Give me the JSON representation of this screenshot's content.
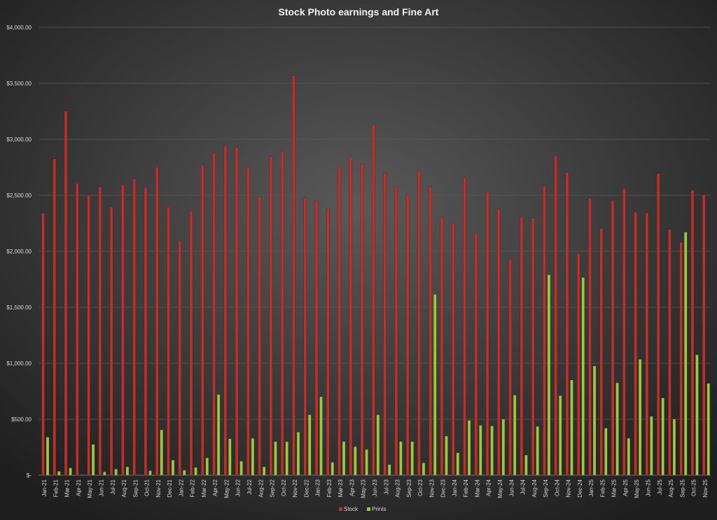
{
  "chart_data": {
    "type": "bar",
    "title": "Stock Photo earnings and Fine Art",
    "categories": [
      "Jan-21",
      "Feb-21",
      "Mar-21",
      "Apr-21",
      "May-21",
      "Jun-21",
      "Jul-21",
      "Aug-21",
      "Sep-21",
      "Oct-21",
      "Nov-21",
      "Dec-21",
      "Jan-22",
      "Feb-22",
      "Mar-22",
      "Apr-22",
      "May-22",
      "Jun-22",
      "Jul-22",
      "Aug-22",
      "Sep-22",
      "Oct-22",
      "Nov-22",
      "Dec-22",
      "Jan-23",
      "Feb-23",
      "Mar-23",
      "Apr-23",
      "May-23",
      "Jun-23",
      "Jul-23",
      "Aug-23",
      "Sep-23",
      "Oct-23",
      "Nov-23",
      "Dec-23",
      "Jan-24",
      "Feb-24",
      "Mar-24",
      "Apr-24",
      "May-24",
      "Jun-24",
      "Jul-24",
      "Aug-24",
      "Sep-24",
      "Oct-24",
      "Nov-24",
      "Dec-24",
      "Jan-25",
      "Feb-25",
      "Mar-25",
      "Apr-25",
      "May-25",
      "Jun-25",
      "Jul-25",
      "Aug-25",
      "Sep-25",
      "Oct-25",
      "Nov-25"
    ],
    "series": [
      {
        "name": "Stock",
        "color": "#c0302a",
        "values": [
          2340,
          2825,
          3250,
          2606,
          2500,
          2575,
          2394,
          2594,
          2644,
          2569,
          2750,
          2394,
          2090,
          2360,
          2770,
          2880,
          2940,
          2925,
          2750,
          2490,
          2845,
          2890,
          3570,
          2475,
          2450,
          2375,
          2755,
          2840,
          2780,
          3130,
          2695,
          2575,
          2505,
          2720,
          2580,
          2300,
          2250,
          2660,
          2160,
          2530,
          2375,
          1930,
          2305,
          2295,
          2580,
          2850,
          2705,
          1980,
          2470,
          2205,
          2455,
          2560,
          2350,
          2340,
          2695,
          2195,
          2080,
          2545,
          2505
        ]
      },
      {
        "name": "Prints",
        "color": "#9bcb3c",
        "values": [
          340,
          35,
          65,
          5,
          275,
          30,
          55,
          75,
          0,
          40,
          405,
          135,
          45,
          70,
          155,
          720,
          325,
          125,
          330,
          75,
          300,
          300,
          385,
          540,
          700,
          115,
          300,
          255,
          230,
          540,
          95,
          300,
          300,
          110,
          1615,
          350,
          200,
          490,
          445,
          440,
          500,
          715,
          180,
          435,
          1790,
          710,
          850,
          1765,
          975,
          420,
          825,
          330,
          1035,
          525,
          690,
          500,
          2170,
          1075,
          820
        ]
      }
    ],
    "ylim": [
      0,
      4000
    ],
    "yticks": [
      {
        "value": 0,
        "label": "$-"
      },
      {
        "value": 500,
        "label": "$500.00"
      },
      {
        "value": 1000,
        "label": "$1,000.00"
      },
      {
        "value": 1500,
        "label": "$1,500.00"
      },
      {
        "value": 2000,
        "label": "$2,000.00"
      },
      {
        "value": 2500,
        "label": "$2,500.00"
      },
      {
        "value": 3000,
        "label": "$3,000.00"
      },
      {
        "value": 3500,
        "label": "$3,500.00"
      },
      {
        "value": 4000,
        "label": "$4,000.00"
      }
    ],
    "grid": true,
    "legend": "bottom"
  }
}
